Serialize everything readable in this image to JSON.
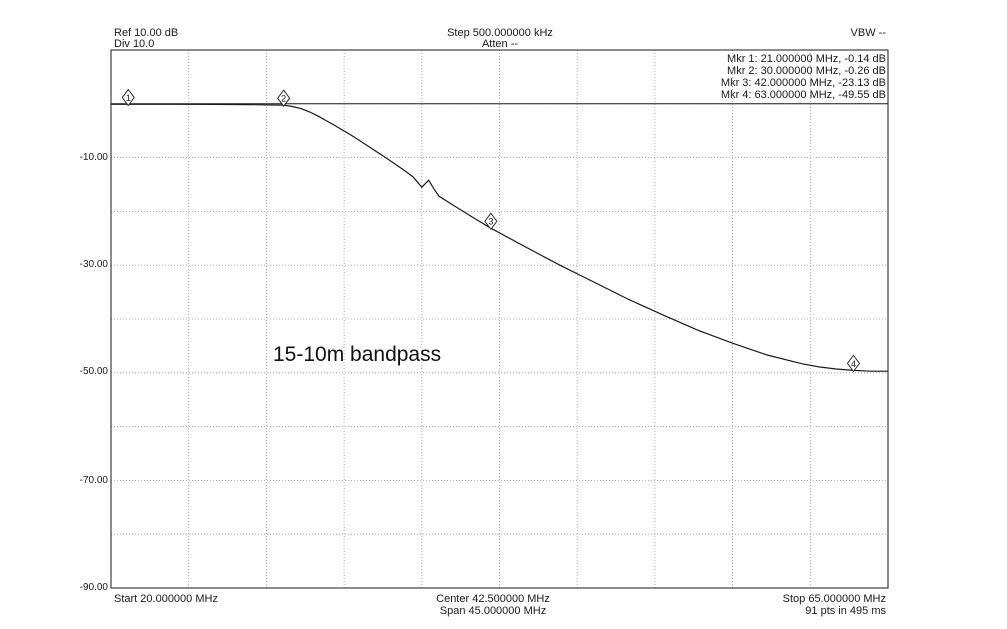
{
  "header": {
    "ref": "Ref 10.00 dB",
    "div": "Div 10.0",
    "step": "Step 500.000000 kHz",
    "atten": "Atten --",
    "vbw": "VBW --"
  },
  "footer": {
    "start": "Start 20.000000 MHz",
    "center": "Center 42.500000 MHz",
    "span": "Span 45.000000 MHz",
    "stop": "Stop 65.000000 MHz",
    "pts": "91 pts in 495 ms"
  },
  "annotation": "15-10m bandpass",
  "markers": [
    {
      "label": "1",
      "readout": "Mkr 1: 21.000000 MHz, -0.14 dB",
      "x": 21.0,
      "y": -0.14
    },
    {
      "label": "2",
      "readout": "Mkr 2: 30.000000 MHz, -0.26 dB",
      "x": 30.0,
      "y": -0.26
    },
    {
      "label": "3",
      "readout": "Mkr 3: 42.000000 MHz, -23.13 dB",
      "x": 42.0,
      "y": -23.13
    },
    {
      "label": "4",
      "readout": "Mkr 4: 63.000000 MHz, -49.55 dB",
      "x": 63.0,
      "y": -49.55
    }
  ],
  "chart_data": {
    "type": "line",
    "xlim": [
      20,
      65
    ],
    "ylim": [
      -90,
      10
    ],
    "reference_line": 0,
    "grid": true,
    "y_tick_labels": [
      "-10.00",
      "-30.00",
      "-50.00",
      "-70.00",
      "-90.00"
    ],
    "y_tick_values": [
      -10,
      -30,
      -50,
      -70,
      -90
    ],
    "series": [
      {
        "x": [
          20,
          22,
          24,
          26,
          28,
          29,
          30,
          30.5,
          31,
          31.5,
          32,
          32.5,
          33,
          34,
          35,
          36,
          37,
          37.5,
          38,
          38.4,
          38.7,
          39,
          40,
          41,
          42,
          44,
          46,
          48,
          50,
          52,
          54,
          56,
          58,
          60,
          61,
          62,
          63,
          64,
          65
        ],
        "y": [
          -0.1,
          -0.1,
          -0.1,
          -0.12,
          -0.15,
          -0.2,
          -0.26,
          -0.5,
          -0.9,
          -1.5,
          -2.3,
          -3.2,
          -4.1,
          -6.0,
          -8.1,
          -10.2,
          -12.4,
          -13.6,
          -15.5,
          -14.2,
          -15.8,
          -17.2,
          -19.2,
          -21.2,
          -23.13,
          -26.6,
          -30.0,
          -33.2,
          -36.4,
          -39.3,
          -42.1,
          -44.5,
          -46.7,
          -48.3,
          -48.9,
          -49.3,
          -49.55,
          -49.7,
          -49.7
        ]
      }
    ]
  }
}
